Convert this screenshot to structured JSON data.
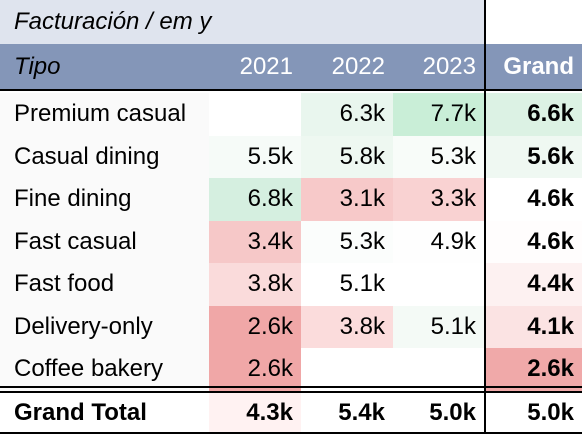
{
  "title": "Facturación / em y",
  "header": {
    "row_label": "Tipo",
    "columns": [
      "2021",
      "2022",
      "2023",
      "Grand"
    ]
  },
  "rows": [
    {
      "label": "Premium casual",
      "values": [
        "",
        "6.3k",
        "7.7k",
        "6.6k"
      ]
    },
    {
      "label": "Casual dining",
      "values": [
        "5.5k",
        "5.8k",
        "5.3k",
        "5.6k"
      ]
    },
    {
      "label": "Fine dining",
      "values": [
        "6.8k",
        "3.1k",
        "3.3k",
        "4.6k"
      ]
    },
    {
      "label": "Fast casual",
      "values": [
        "3.4k",
        "5.3k",
        "4.9k",
        "4.6k"
      ]
    },
    {
      "label": "Fast food",
      "values": [
        "3.8k",
        "5.1k",
        "",
        "4.4k"
      ]
    },
    {
      "label": "Delivery-only",
      "values": [
        "2.6k",
        "3.8k",
        "5.1k",
        "4.1k"
      ]
    },
    {
      "label": "Coffee bakery",
      "values": [
        "2.6k",
        "",
        "",
        "2.6k"
      ]
    }
  ],
  "total": {
    "label": "Grand Total",
    "values": [
      "4.3k",
      "5.4k",
      "5.0k",
      "5.0k"
    ]
  },
  "colors": {
    "header_bg": "#8496b8",
    "title_bg": "#dfe4ee",
    "rowlabel_bg": "#fafafa",
    "cell_colors": [
      [
        "#ffffff",
        "#e9f6ee",
        "#c9eed7",
        "#dcf2e4"
      ],
      [
        "#f6fbf8",
        "#eef8f1",
        "#f8fcf9",
        "#eff8f2"
      ],
      [
        "#d5efe0",
        "#f7c9c9",
        "#f9d2d2",
        "#ffffff"
      ],
      [
        "#f6c8c8",
        "#fbfdfc",
        "#fefefe",
        "#fffdfd"
      ],
      [
        "#fadbdb",
        "#ffffff",
        "#ffffff",
        "#fdf1f1"
      ],
      [
        "#f0a7a7",
        "#fbdcdc",
        "#f4faf6",
        "#fbe3e3"
      ],
      [
        "#f0a7a7",
        "#ffffff",
        "#ffffff",
        "#f0a9a9"
      ]
    ],
    "total_colors": [
      "#fff2f2",
      "#ffffff",
      "#ffffff",
      "#ffffff"
    ]
  }
}
